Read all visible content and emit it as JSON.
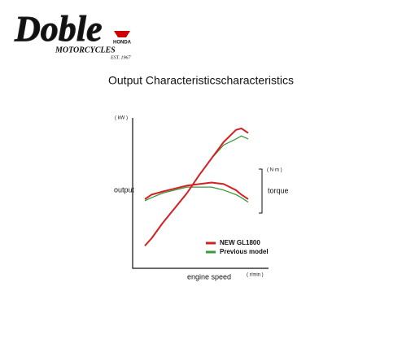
{
  "header": {
    "logo": "Doble",
    "brand": "HONDA",
    "sub": "MOTORCYCLES",
    "est": "EST. 1967"
  },
  "chart_data": {
    "type": "line",
    "title": "Output Characteristicscharacteristics",
    "y_unit": "( kW )",
    "y_label": "output",
    "x_label": "engine speed",
    "x_unit": "( r/min )",
    "torque_unit": "( N·m )",
    "torque_label": "torque",
    "x": [
      9,
      14,
      22,
      31,
      40,
      49,
      58,
      67,
      76,
      80,
      85
    ],
    "xlim": [
      0,
      100
    ],
    "ylim": [
      0,
      100
    ],
    "series": [
      {
        "name": "NEW GL1800",
        "color": "#d42020",
        "values": [
          15,
          20,
          30,
          40,
          50,
          62,
          73,
          84,
          92,
          93,
          90
        ],
        "torque": [
          46,
          49,
          51,
          53,
          55,
          56,
          57,
          56,
          52,
          49,
          46
        ]
      },
      {
        "name": "Previous model",
        "color": "#3a9a3a",
        "values": [
          15,
          20,
          30,
          40,
          50,
          62,
          73,
          82,
          86,
          88,
          86
        ],
        "torque": [
          45,
          47,
          50,
          52,
          54,
          54,
          54,
          52,
          49,
          47,
          44
        ]
      }
    ]
  }
}
